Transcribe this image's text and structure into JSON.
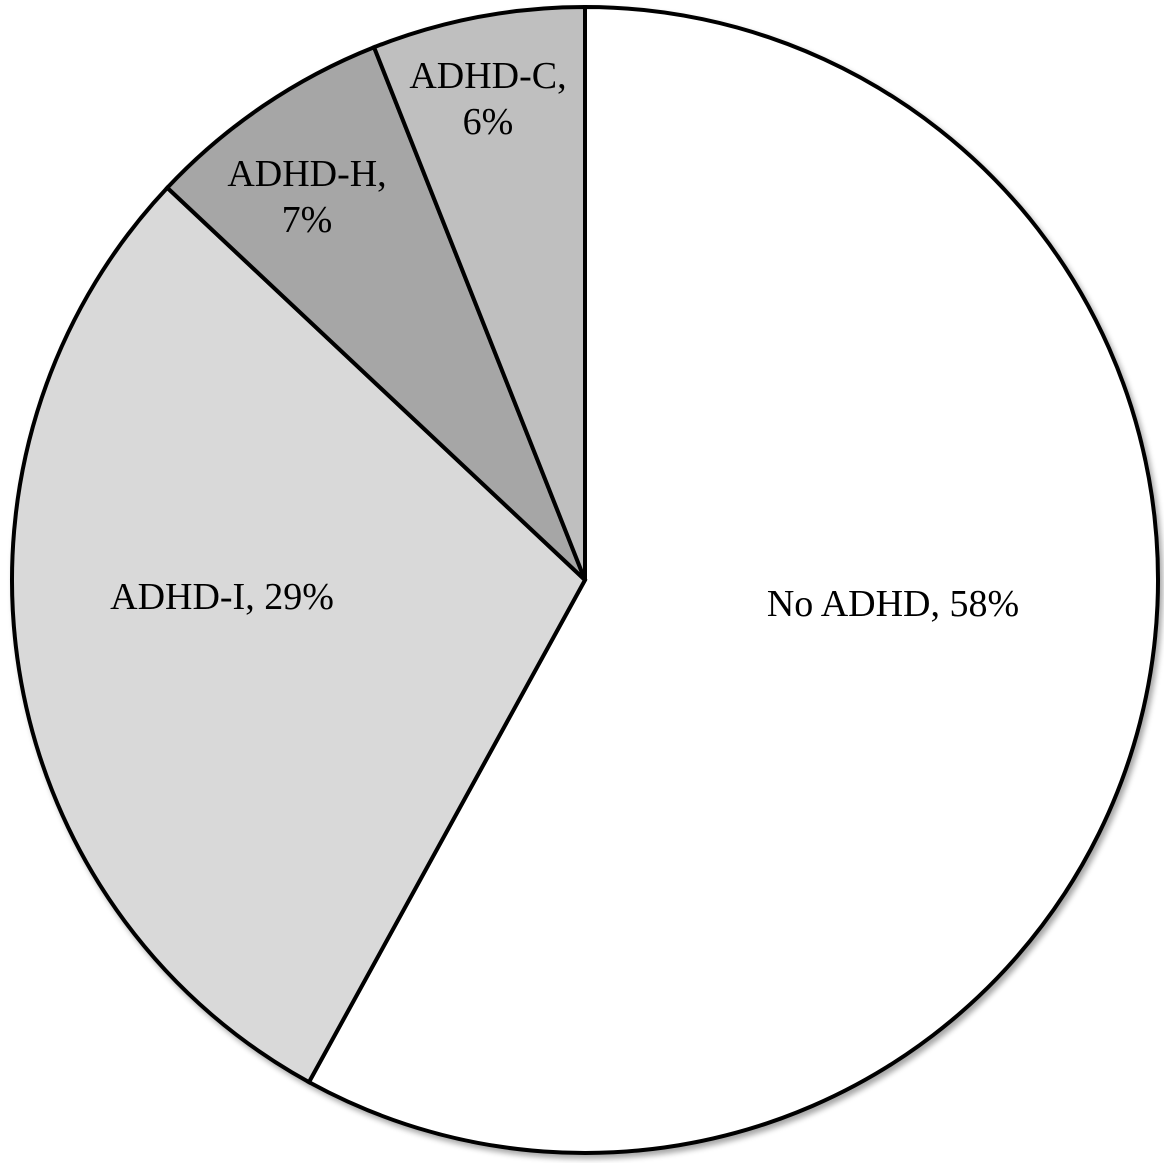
{
  "chart_data": {
    "type": "pie",
    "title": "",
    "start_angle_deg": 0,
    "direction": "clockwise",
    "slices": [
      {
        "name": "No ADHD",
        "value": 58,
        "label_lines": [
          "No ADHD, 58%"
        ],
        "color": "#ffffff"
      },
      {
        "name": "ADHD-I",
        "value": 29,
        "label_lines": [
          "ADHD-I, 29%"
        ],
        "color": "#d9d9d9"
      },
      {
        "name": "ADHD-H",
        "value": 7,
        "label_lines": [
          "ADHD-H,",
          "7%"
        ],
        "color": "#a6a6a6"
      },
      {
        "name": "ADHD-C",
        "value": 6,
        "label_lines": [
          "ADHD-C,",
          "6%"
        ],
        "color": "#bfbfbf"
      }
    ]
  }
}
